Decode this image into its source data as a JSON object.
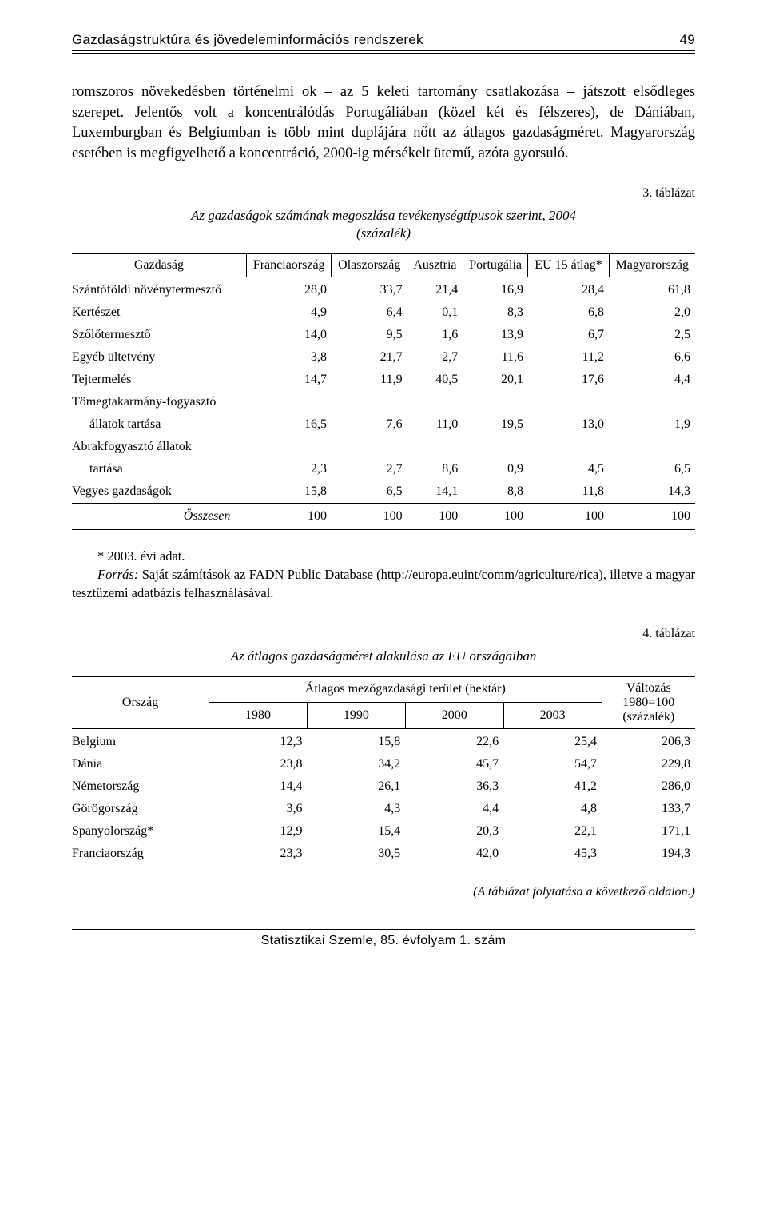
{
  "runningHead": {
    "title": "Gazdaságstruktúra és jövedeleminformációs rendszerek",
    "pageNumber": "49"
  },
  "bodyParagraph": "romszoros növekedésben történelmi ok – az 5 keleti tartomány csatlakozása – játszott elsődleges szerepet. Jelentős volt a koncentrálódás Portugáliában (közel két és félszeres), de Dániában, Luxemburgban és Belgiumban is több mint duplájára nőtt az átlagos gazdaságméret. Magyarország esetében is megfigyelhető a koncentráció, 2000-ig mérsékelt ütemű, azóta gyorsuló.",
  "table3": {
    "number": "3. táblázat",
    "captionLines": [
      "Az gazdaságok számának megoszlása tevékenységtípusok szerint, 2004",
      "(százalék)"
    ],
    "columns": [
      "Gazdaság",
      "Franciaország",
      "Olaszország",
      "Ausztria",
      "Portugália",
      "EU 15 átlag*",
      "Magyarország"
    ],
    "rows": [
      {
        "label": "Szántóföldi növénytermesztő",
        "values": [
          "28,0",
          "33,7",
          "21,4",
          "16,9",
          "28,4",
          "61,8"
        ],
        "indent": false
      },
      {
        "label": "Kertészet",
        "values": [
          "4,9",
          "6,4",
          "0,1",
          "8,3",
          "6,8",
          "2,0"
        ],
        "indent": false
      },
      {
        "label": "Szőlőtermesztő",
        "values": [
          "14,0",
          "9,5",
          "1,6",
          "13,9",
          "6,7",
          "2,5"
        ],
        "indent": false
      },
      {
        "label": "Egyéb ültetvény",
        "values": [
          "3,8",
          "21,7",
          "2,7",
          "11,6",
          "11,2",
          "6,6"
        ],
        "indent": false
      },
      {
        "label": "Tejtermelés",
        "values": [
          "14,7",
          "11,9",
          "40,5",
          "20,1",
          "17,6",
          "4,4"
        ],
        "indent": false
      },
      {
        "label": "Tömegtakarmány-fogyasztó",
        "values": [
          "",
          "",
          "",
          "",
          "",
          ""
        ],
        "indent": false
      },
      {
        "label": "állatok tartása",
        "values": [
          "16,5",
          "7,6",
          "11,0",
          "19,5",
          "13,0",
          "1,9"
        ],
        "indent": true
      },
      {
        "label": "Abrakfogyasztó állatok",
        "values": [
          "",
          "",
          "",
          "",
          "",
          ""
        ],
        "indent": false
      },
      {
        "label": "tartása",
        "values": [
          "2,3",
          "2,7",
          "8,6",
          "0,9",
          "4,5",
          "6,5"
        ],
        "indent": true
      },
      {
        "label": "Vegyes gazdaságok",
        "values": [
          "15,8",
          "6,5",
          "14,1",
          "8,8",
          "11,8",
          "14,3"
        ],
        "indent": false
      }
    ],
    "sumRow": {
      "label": "Összesen",
      "values": [
        "100",
        "100",
        "100",
        "100",
        "100",
        "100"
      ]
    }
  },
  "notes3": {
    "line1": "* 2003. évi adat.",
    "line2": "Forrás: Saját számítások az FADN Public Database (http://europa.euint/comm/agriculture/rica), illetve a magyar tesztüzemi adatbázis felhasználásával."
  },
  "table4": {
    "number": "4. táblázat",
    "caption": "Az átlagos gazdaságméret alakulása az EU országaiban",
    "head": {
      "colLabel0": "Ország",
      "spanLabel": "Átlagos mezőgazdasági terület (hektár)",
      "years": [
        "1980",
        "1990",
        "2000",
        "2003"
      ],
      "changeLabelLines": [
        "Változás",
        "1980=100",
        "(százalék)"
      ]
    },
    "rows": [
      {
        "label": "Belgium",
        "values": [
          "12,3",
          "15,8",
          "22,6",
          "25,4",
          "206,3"
        ]
      },
      {
        "label": "Dánia",
        "values": [
          "23,8",
          "34,2",
          "45,7",
          "54,7",
          "229,8"
        ]
      },
      {
        "label": "Németország",
        "values": [
          "14,4",
          "26,1",
          "36,3",
          "41,2",
          "286,0"
        ]
      },
      {
        "label": "Görögország",
        "values": [
          "3,6",
          "4,3",
          "4,4",
          "4,8",
          "133,7"
        ]
      },
      {
        "label": "Spanyolország*",
        "values": [
          "12,9",
          "15,4",
          "20,3",
          "22,1",
          "171,1"
        ]
      },
      {
        "label": "Franciaország",
        "values": [
          "23,3",
          "30,5",
          "42,0",
          "45,3",
          "194,3"
        ]
      }
    ],
    "contNote": "(A táblázat folytatása a következő oldalon.)"
  },
  "footer": "Statisztikai Szemle, 85. évfolyam 1. szám"
}
